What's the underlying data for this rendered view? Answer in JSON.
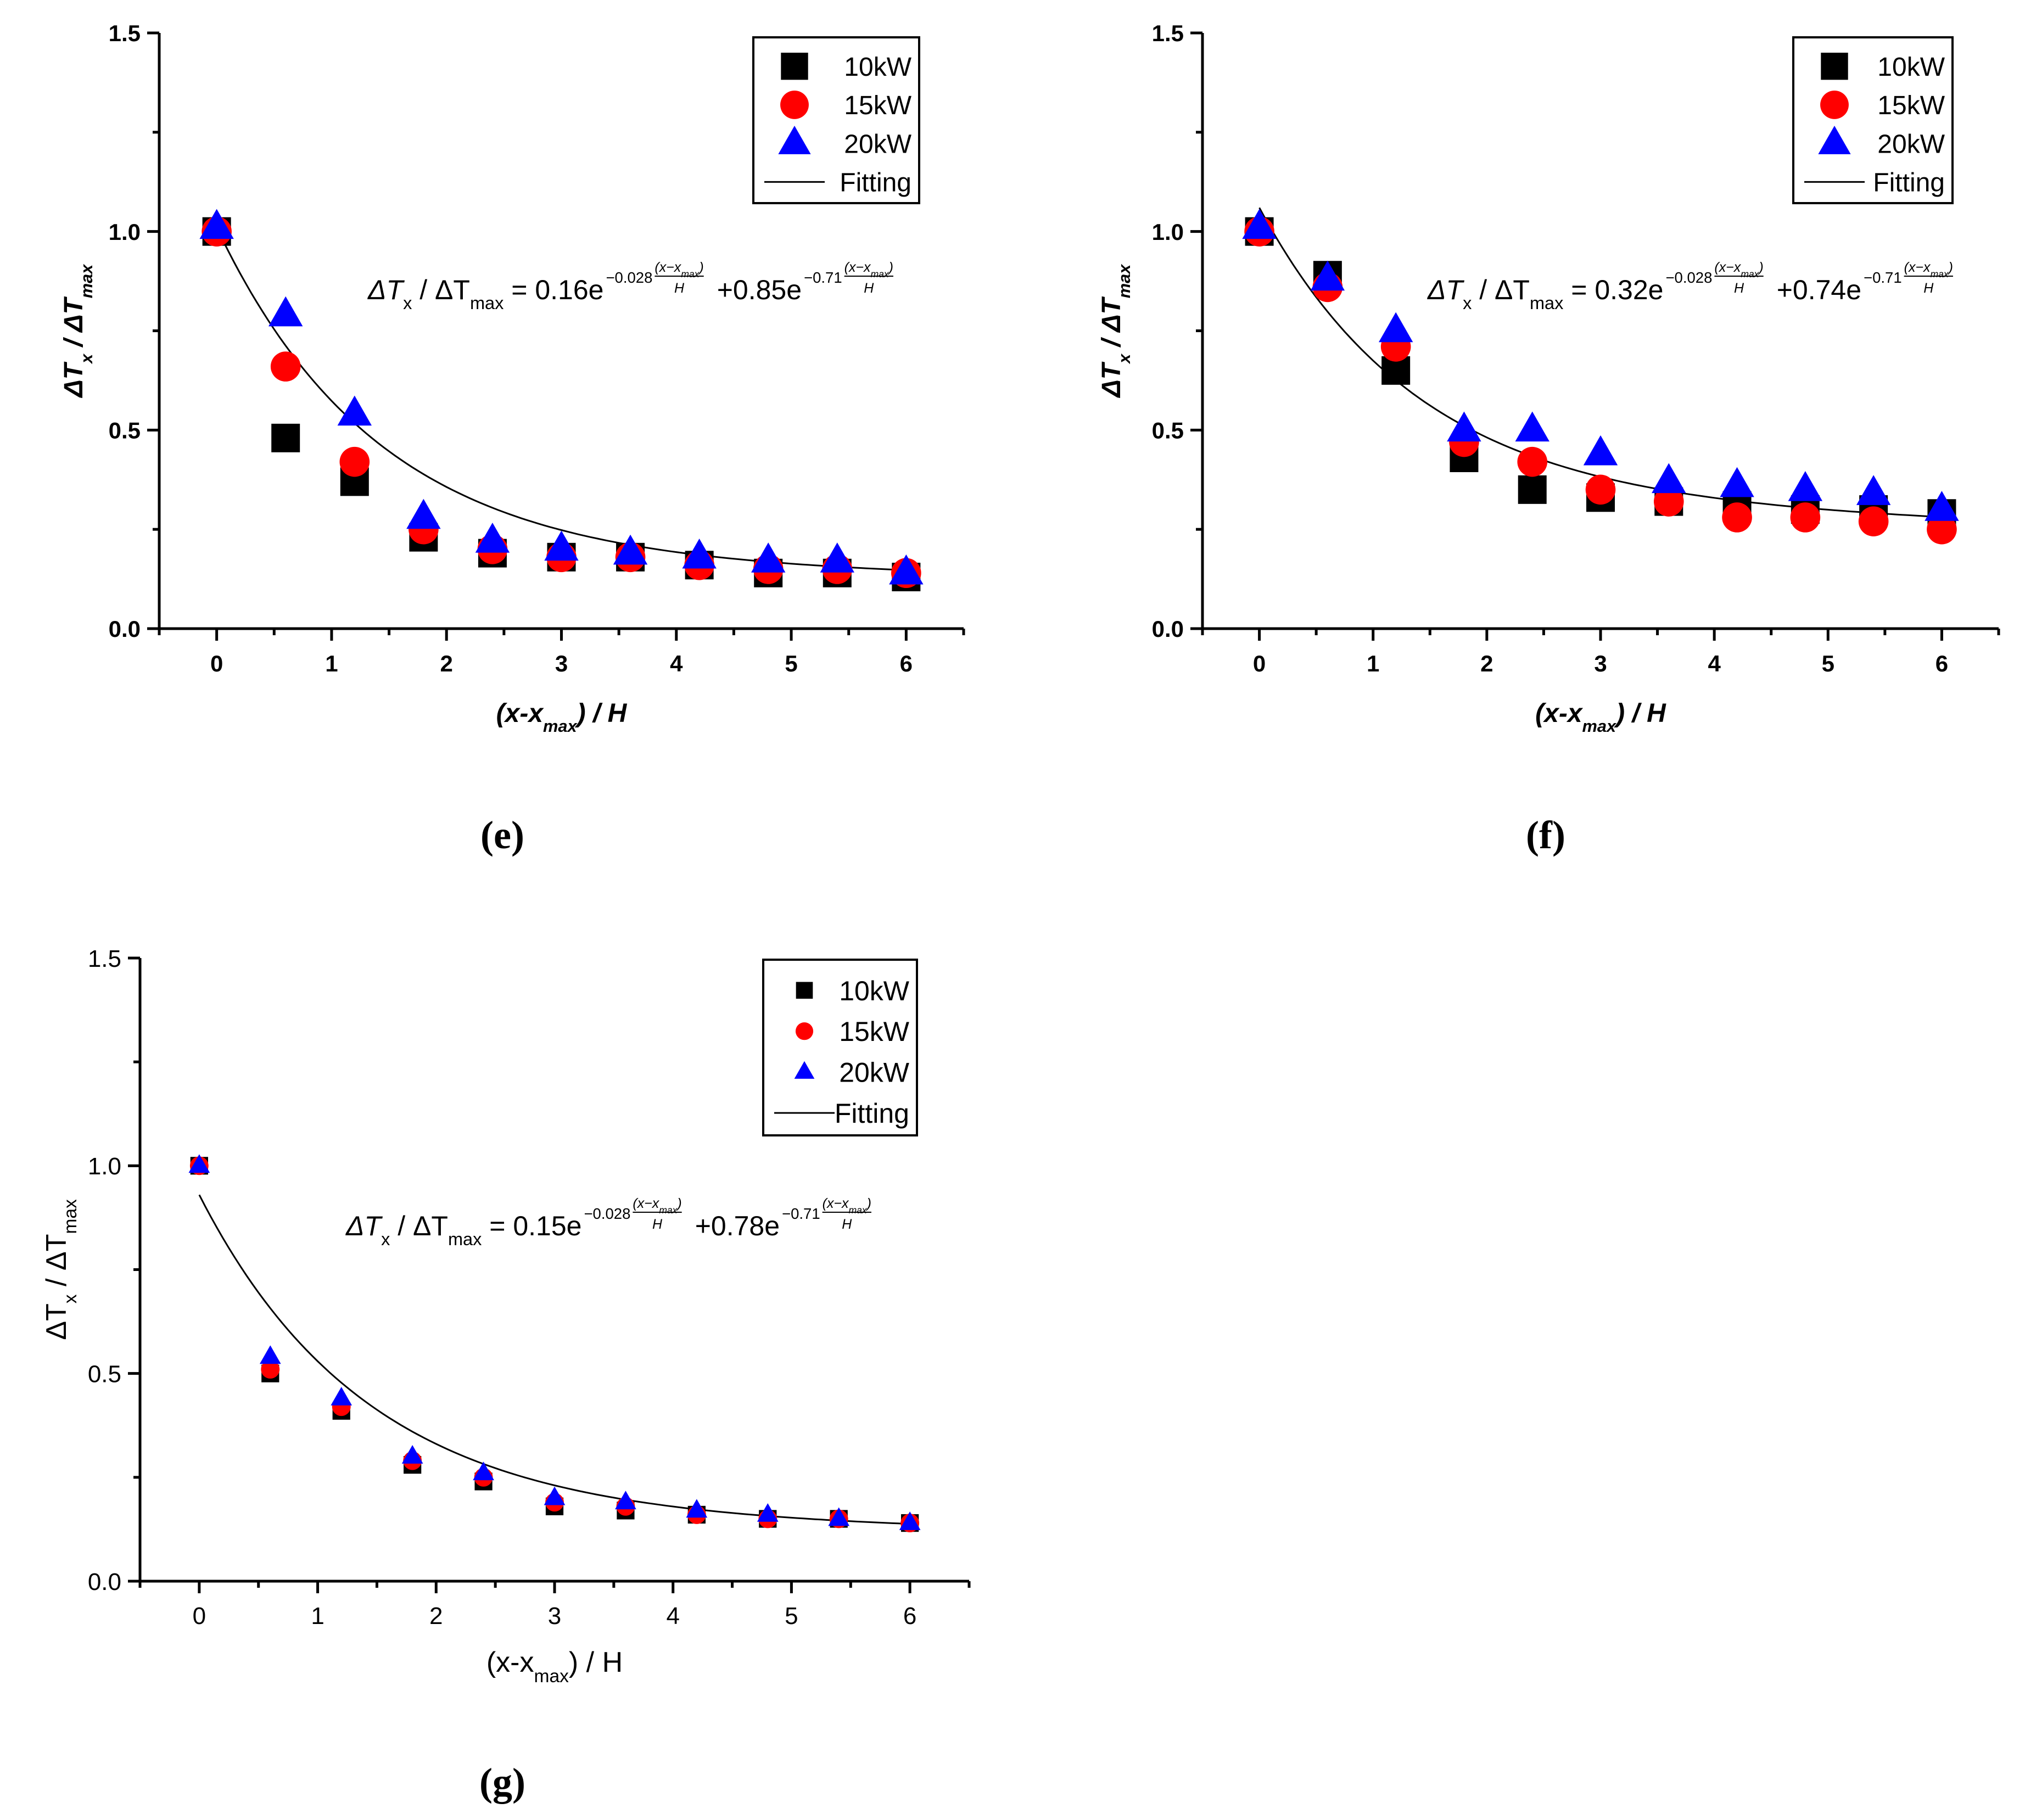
{
  "chart_data": [
    {
      "panel": "e",
      "caption": "(e)",
      "type": "scatter",
      "style": "bold",
      "ylabel": {
        "main": "ΔT",
        "sub": "x",
        "mid": " / ΔT",
        "sub2": "max"
      },
      "xlabel": {
        "pre": "(x-x",
        "sub": "max",
        "post": ") / H"
      },
      "xlim": [
        -0.5,
        6.5
      ],
      "ylim": [
        0.0,
        1.5
      ],
      "xticks": [
        "0",
        "1",
        "2",
        "3",
        "4",
        "5",
        "6"
      ],
      "yticks": [
        "0.0",
        "0.5",
        "1.0",
        "1.5"
      ],
      "legend": [
        "10kW",
        "15kW",
        "20kW",
        "Fitting"
      ],
      "equation": {
        "lhs": "ΔT",
        "lhs_sub": "x",
        "lhs_mid": " / ΔT",
        "lhs_sub2": "max",
        "c1": " = 0.16e",
        "e1": "−0.028",
        "frac": "(x−x",
        "frac_sub": "max",
        "frac_close": ")",
        "den": "H",
        "c2": "+0.85e",
        "e2": "−0.71"
      },
      "fit": {
        "a": 0.16,
        "b": -0.028,
        "c": 0.85,
        "d": -0.71,
        "x0": 0
      },
      "series": [
        {
          "name": "10kW",
          "marker": "square",
          "color": "#000000",
          "x": [
            0,
            0.6,
            1.2,
            1.8,
            2.4,
            3.0,
            3.6,
            4.2,
            4.8,
            5.4,
            6.0
          ],
          "y": [
            1.0,
            0.48,
            0.37,
            0.23,
            0.19,
            0.18,
            0.18,
            0.16,
            0.14,
            0.14,
            0.13
          ]
        },
        {
          "name": "15kW",
          "marker": "circle",
          "color": "#ff0000",
          "x": [
            0,
            0.6,
            1.2,
            1.8,
            2.4,
            3.0,
            3.6,
            4.2,
            4.8,
            5.4,
            6.0
          ],
          "y": [
            1.0,
            0.66,
            0.42,
            0.25,
            0.2,
            0.18,
            0.18,
            0.16,
            0.15,
            0.15,
            0.14
          ]
        },
        {
          "name": "20kW",
          "marker": "triangle",
          "color": "#0000ff",
          "x": [
            0,
            0.6,
            1.2,
            1.8,
            2.4,
            3.0,
            3.6,
            4.2,
            4.8,
            5.4,
            6.0
          ],
          "y": [
            1.01,
            0.79,
            0.54,
            0.28,
            0.22,
            0.2,
            0.19,
            0.18,
            0.17,
            0.17,
            0.14
          ]
        }
      ]
    },
    {
      "panel": "f",
      "caption": "(f)",
      "type": "scatter",
      "style": "bold",
      "ylabel": {
        "main": "ΔT",
        "sub": "x",
        "mid": " / ΔT",
        "sub2": "max"
      },
      "xlabel": {
        "pre": "(x-x",
        "sub": "max",
        "post": ") / H"
      },
      "xlim": [
        -0.5,
        6.5
      ],
      "ylim": [
        0.0,
        1.5
      ],
      "xticks": [
        "0",
        "1",
        "2",
        "3",
        "4",
        "5",
        "6"
      ],
      "yticks": [
        "0.0",
        "0.5",
        "1.0",
        "1.5"
      ],
      "legend": [
        "10kW",
        "15kW",
        "20kW",
        "Fitting"
      ],
      "equation": {
        "lhs": "ΔT",
        "lhs_sub": "x",
        "lhs_mid": " / ΔT",
        "lhs_sub2": "max",
        "c1": " = 0.32e",
        "e1": "−0.028",
        "frac": "(x−x",
        "frac_sub": "max",
        "frac_close": ")",
        "den": "H",
        "c2": "+0.74e",
        "e2": "−0.71"
      },
      "fit": {
        "a": 0.32,
        "b": -0.028,
        "c": 0.74,
        "d": -0.71,
        "x0": 0
      },
      "series": [
        {
          "name": "10kW",
          "marker": "square",
          "color": "#000000",
          "x": [
            0,
            0.6,
            1.2,
            1.8,
            2.4,
            3.0,
            3.6,
            4.2,
            4.8,
            5.4,
            6.0
          ],
          "y": [
            1.0,
            0.89,
            0.65,
            0.43,
            0.35,
            0.33,
            0.32,
            0.31,
            0.3,
            0.3,
            0.29
          ]
        },
        {
          "name": "15kW",
          "marker": "circle",
          "color": "#ff0000",
          "x": [
            0,
            0.6,
            1.2,
            1.8,
            2.4,
            3.0,
            3.6,
            4.2,
            4.8,
            5.4,
            6.0
          ],
          "y": [
            1.0,
            0.86,
            0.71,
            0.47,
            0.42,
            0.35,
            0.32,
            0.28,
            0.28,
            0.27,
            0.25
          ]
        },
        {
          "name": "20kW",
          "marker": "triangle",
          "color": "#0000ff",
          "x": [
            0,
            0.6,
            1.2,
            1.8,
            2.4,
            3.0,
            3.6,
            4.2,
            4.8,
            5.4,
            6.0
          ],
          "y": [
            1.01,
            0.88,
            0.75,
            0.5,
            0.5,
            0.44,
            0.37,
            0.36,
            0.35,
            0.34,
            0.3
          ]
        }
      ]
    },
    {
      "panel": "g",
      "caption": "(g)",
      "type": "scatter",
      "style": "serif",
      "ylabel": {
        "main": "ΔT",
        "sub": "x",
        "mid": " / ΔT",
        "sub2": "max"
      },
      "xlabel": {
        "pre": "(x-x",
        "sub": "max",
        "post": ") / H"
      },
      "xlim": [
        -0.5,
        6.5
      ],
      "ylim": [
        0.0,
        1.5
      ],
      "xticks": [
        "0",
        "1",
        "2",
        "3",
        "4",
        "5",
        "6"
      ],
      "yticks": [
        "0.0",
        "0.5",
        "1.0",
        "1.5"
      ],
      "legend": [
        "10kW",
        "15kW",
        "20kW",
        "Fitting"
      ],
      "equation": {
        "lhs": "ΔT",
        "lhs_sub": "x",
        "lhs_mid": " / ΔT",
        "lhs_sub2": "max",
        "c1": " = 0.15e",
        "e1": "−0.028",
        "frac": "(x−x",
        "frac_sub": "max",
        "frac_close": ")",
        "den": "H",
        "c2": "+0.78e",
        "e2": "−0.71"
      },
      "fit": {
        "a": 0.15,
        "b": -0.028,
        "c": 0.78,
        "d": -0.71,
        "x0": 0
      },
      "series": [
        {
          "name": "10kW",
          "marker": "square",
          "color": "#000000",
          "x": [
            0,
            0.6,
            1.2,
            1.8,
            2.4,
            3.0,
            3.6,
            4.2,
            4.8,
            5.4,
            6.0
          ],
          "y": [
            1.0,
            0.5,
            0.41,
            0.28,
            0.24,
            0.18,
            0.17,
            0.16,
            0.15,
            0.15,
            0.14
          ]
        },
        {
          "name": "15kW",
          "marker": "circle",
          "color": "#ff0000",
          "x": [
            0,
            0.6,
            1.2,
            1.8,
            2.4,
            3.0,
            3.6,
            4.2,
            4.8,
            5.4,
            6.0
          ],
          "y": [
            1.0,
            0.51,
            0.42,
            0.29,
            0.25,
            0.19,
            0.18,
            0.16,
            0.15,
            0.15,
            0.14
          ]
        },
        {
          "name": "20kW",
          "marker": "triangle",
          "color": "#0000ff",
          "x": [
            0,
            0.6,
            1.2,
            1.8,
            2.4,
            3.0,
            3.6,
            4.2,
            4.8,
            5.4,
            6.0
          ],
          "y": [
            1.0,
            0.54,
            0.44,
            0.3,
            0.26,
            0.2,
            0.19,
            0.17,
            0.16,
            0.15,
            0.14
          ]
        }
      ]
    }
  ]
}
